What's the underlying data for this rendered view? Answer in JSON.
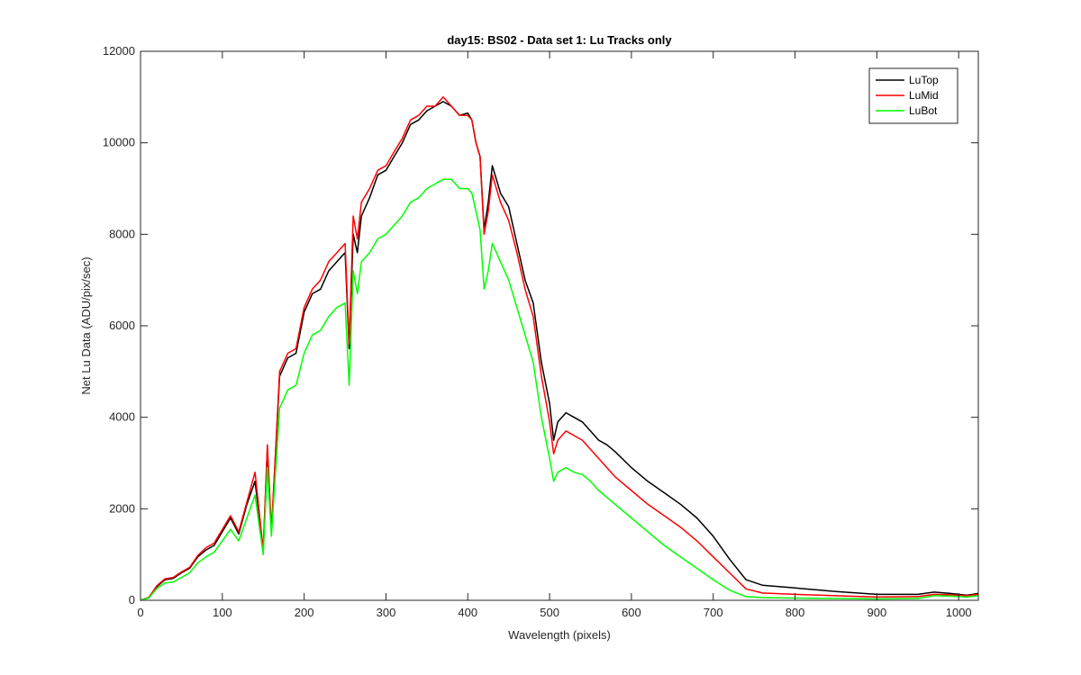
{
  "chart_data": {
    "type": "line",
    "title": "day15: BS02 - Data set 1: Lu Tracks only",
    "xlabel": "Wavelength (pixels)",
    "ylabel": "Net Lu Data (ADU/pix/sec)",
    "xlim": [
      0,
      1024
    ],
    "ylim": [
      0,
      12000
    ],
    "xticks": [
      0,
      100,
      200,
      300,
      400,
      500,
      600,
      700,
      800,
      900,
      1000
    ],
    "yticks": [
      0,
      2000,
      4000,
      6000,
      8000,
      10000,
      12000
    ],
    "legend_position": "top-right",
    "series": [
      {
        "name": "LuTop",
        "color": "#000000",
        "x": [
          0,
          10,
          20,
          30,
          40,
          50,
          60,
          70,
          80,
          90,
          100,
          110,
          120,
          130,
          140,
          150,
          155,
          160,
          170,
          180,
          190,
          200,
          210,
          220,
          230,
          240,
          250,
          255,
          260,
          265,
          270,
          280,
          290,
          300,
          310,
          320,
          330,
          340,
          350,
          360,
          370,
          380,
          390,
          400,
          405,
          410,
          415,
          420,
          425,
          430,
          440,
          450,
          460,
          470,
          480,
          490,
          500,
          505,
          510,
          520,
          530,
          540,
          550,
          560,
          570,
          580,
          600,
          620,
          640,
          660,
          680,
          700,
          720,
          740,
          760,
          800,
          850,
          900,
          950,
          970,
          990,
          1010,
          1024
        ],
        "y": [
          0,
          60,
          300,
          450,
          480,
          600,
          700,
          950,
          1100,
          1200,
          1500,
          1800,
          1450,
          2100,
          2600,
          1100,
          3300,
          1500,
          4900,
          5300,
          5400,
          6300,
          6700,
          6800,
          7200,
          7400,
          7600,
          5500,
          8000,
          7600,
          8400,
          8800,
          9300,
          9400,
          9700,
          10000,
          10400,
          10500,
          10700,
          10800,
          10900,
          10800,
          10600,
          10650,
          10500,
          10000,
          9700,
          8100,
          8700,
          9500,
          8900,
          8600,
          7800,
          7000,
          6500,
          5200,
          4300,
          3500,
          3900,
          4100,
          4000,
          3900,
          3700,
          3500,
          3400,
          3250,
          2900,
          2600,
          2350,
          2100,
          1800,
          1400,
          900,
          450,
          330,
          270,
          190,
          130,
          130,
          180,
          150,
          110,
          150
        ]
      },
      {
        "name": "LuMid",
        "color": "#ff0000",
        "x": [
          0,
          10,
          20,
          30,
          40,
          50,
          60,
          70,
          80,
          90,
          100,
          110,
          120,
          130,
          140,
          150,
          155,
          160,
          170,
          180,
          190,
          200,
          210,
          220,
          230,
          240,
          250,
          255,
          260,
          265,
          270,
          280,
          290,
          300,
          310,
          320,
          330,
          340,
          350,
          360,
          370,
          380,
          390,
          400,
          405,
          410,
          415,
          420,
          425,
          430,
          440,
          450,
          460,
          470,
          480,
          490,
          500,
          505,
          510,
          520,
          530,
          540,
          550,
          560,
          570,
          580,
          600,
          620,
          640,
          660,
          680,
          700,
          720,
          740,
          760,
          800,
          850,
          900,
          950,
          970,
          990,
          1010,
          1024
        ],
        "y": [
          0,
          60,
          320,
          470,
          500,
          620,
          720,
          980,
          1150,
          1250,
          1550,
          1850,
          1500,
          2150,
          2800,
          1100,
          3400,
          1500,
          5000,
          5400,
          5500,
          6400,
          6800,
          7000,
          7400,
          7600,
          7800,
          5600,
          8400,
          7900,
          8700,
          9000,
          9400,
          9500,
          9800,
          10100,
          10500,
          10600,
          10800,
          10800,
          11000,
          10800,
          10600,
          10600,
          10500,
          10000,
          9700,
          8000,
          8500,
          9300,
          8700,
          8300,
          7600,
          6800,
          6200,
          4900,
          3900,
          3200,
          3500,
          3700,
          3600,
          3500,
          3300,
          3100,
          2900,
          2700,
          2400,
          2100,
          1850,
          1600,
          1300,
          950,
          600,
          250,
          160,
          130,
          100,
          70,
          80,
          130,
          120,
          100,
          130
        ]
      },
      {
        "name": "LuBot",
        "color": "#00ff00",
        "x": [
          0,
          10,
          20,
          30,
          40,
          50,
          60,
          70,
          80,
          90,
          100,
          110,
          120,
          130,
          140,
          150,
          155,
          160,
          170,
          180,
          190,
          200,
          210,
          220,
          230,
          240,
          250,
          255,
          260,
          265,
          270,
          280,
          290,
          300,
          310,
          320,
          330,
          340,
          350,
          360,
          370,
          380,
          390,
          400,
          405,
          410,
          415,
          420,
          425,
          430,
          440,
          450,
          460,
          470,
          480,
          490,
          500,
          505,
          510,
          520,
          530,
          540,
          550,
          560,
          570,
          580,
          600,
          620,
          640,
          660,
          680,
          700,
          720,
          740,
          760,
          800,
          850,
          900,
          950,
          970,
          990,
          1010,
          1024
        ],
        "y": [
          0,
          50,
          260,
          380,
          400,
          500,
          600,
          820,
          950,
          1050,
          1300,
          1550,
          1300,
          1800,
          2300,
          1000,
          2900,
          1400,
          4200,
          4600,
          4700,
          5400,
          5800,
          5900,
          6200,
          6400,
          6500,
          4700,
          7200,
          6700,
          7400,
          7600,
          7900,
          8000,
          8200,
          8400,
          8700,
          8800,
          9000,
          9100,
          9200,
          9200,
          9000,
          9000,
          8900,
          8500,
          8100,
          6800,
          7200,
          7800,
          7400,
          7000,
          6400,
          5800,
          5200,
          4000,
          3100,
          2600,
          2800,
          2900,
          2800,
          2750,
          2600,
          2400,
          2250,
          2100,
          1800,
          1500,
          1200,
          950,
          700,
          450,
          220,
          80,
          60,
          50,
          40,
          30,
          40,
          100,
          90,
          70,
          100
        ]
      }
    ]
  }
}
